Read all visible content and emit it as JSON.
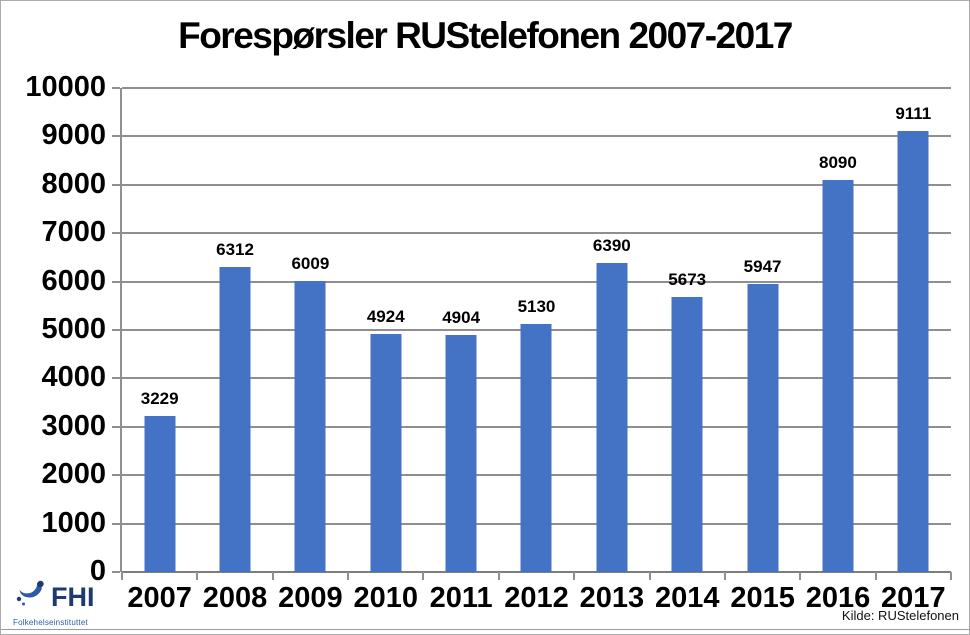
{
  "header": {
    "title": "Forespørsler RUStelefonen 2007-2017"
  },
  "chart_data": {
    "type": "bar",
    "title": "Forespørsler RUStelefonen 2007-2017",
    "categories": [
      "2007",
      "2008",
      "2009",
      "2010",
      "2011",
      "2012",
      "2013",
      "2014",
      "2015",
      "2016",
      "2017"
    ],
    "values": [
      3229,
      6312,
      6009,
      4924,
      4904,
      5130,
      6390,
      5673,
      5947,
      8090,
      9111
    ],
    "xlabel": "",
    "ylabel": "",
    "ylim": [
      0,
      10000
    ],
    "ytick_interval": 1000,
    "yticks": [
      0,
      1000,
      2000,
      3000,
      4000,
      5000,
      6000,
      7000,
      8000,
      9000,
      10000
    ],
    "grid": true,
    "legend": false,
    "data_labels": true,
    "bar_color": "#4472C4",
    "gridline_color": "#8f8f8f"
  },
  "footer": {
    "source_label": "Kilde: RUStelefonen"
  },
  "logo": {
    "abbr": "FHI",
    "name": "Folkehelseinstituttet"
  },
  "colors": {
    "bar": "#4472C4",
    "grid": "#8f8f8f",
    "logo_navy": "#1e3a70",
    "logo_blue": "#2d5aa7"
  }
}
